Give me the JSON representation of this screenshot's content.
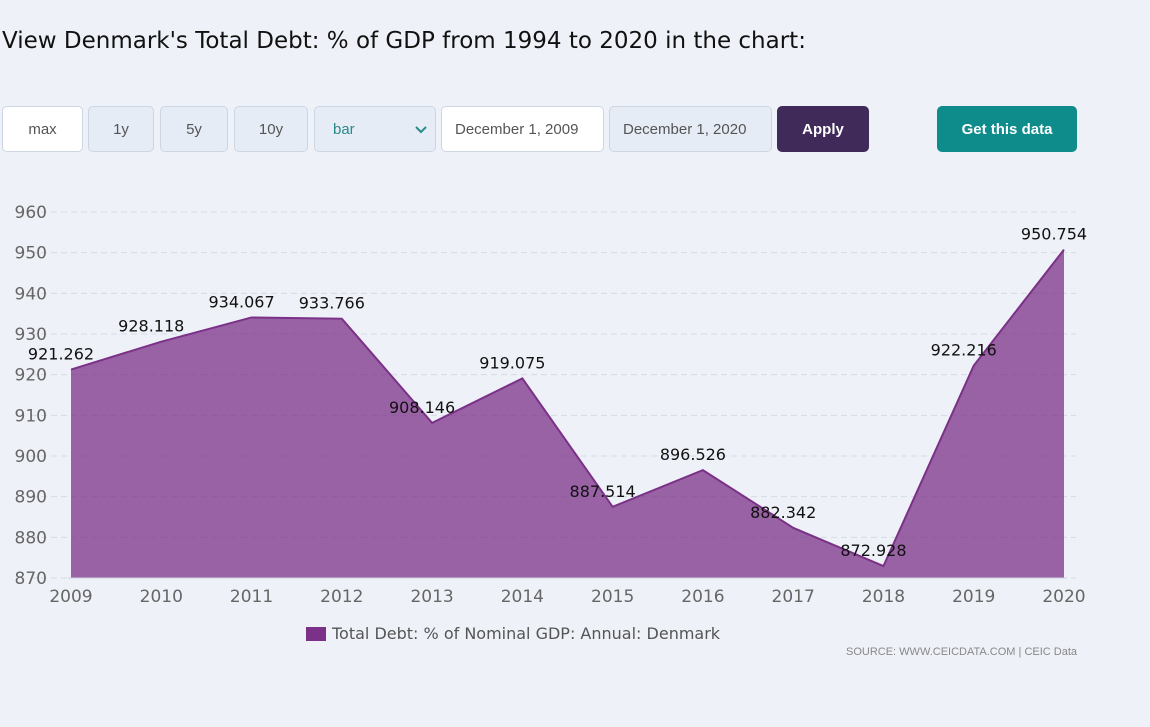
{
  "page": {
    "title": "View Denmark's Total Debt: % of GDP from 1994 to 2020 in the chart:"
  },
  "controls": {
    "periods": [
      "max",
      "1y",
      "5y",
      "10y"
    ],
    "chart_type": "bar",
    "date_from": "December 1, 2009",
    "date_to": "December 1, 2020",
    "apply_label": "Apply",
    "get_data_label": "Get this data"
  },
  "source": {
    "prefix": "SOURCE: WWW.CEICDATA.COM",
    "separator": "|",
    "name": "CEIC Data"
  },
  "colors": {
    "series": "#7b3188",
    "apply": "#3f2a5a",
    "get_data": "#0e8b8b"
  },
  "chart_data": {
    "type": "area",
    "x": [
      2009,
      2010,
      2011,
      2012,
      2013,
      2014,
      2015,
      2016,
      2017,
      2018,
      2019,
      2020
    ],
    "series": [
      {
        "name": "Total Debt: % of Nominal GDP: Annual: Denmark",
        "values": [
          921.262,
          928.118,
          934.067,
          933.766,
          908.146,
          919.075,
          887.514,
          896.526,
          882.342,
          872.928,
          922.216,
          950.754
        ],
        "labels": [
          "921.262",
          "928.118",
          "934.067",
          "933.766",
          "908.146",
          "919.075",
          "887.514",
          "896.526",
          "882.342",
          "872.928",
          "922.216",
          "950.754"
        ]
      }
    ],
    "ylim": [
      870,
      960
    ],
    "yticks": [
      870,
      880,
      890,
      900,
      910,
      920,
      930,
      940,
      950,
      960
    ],
    "grid": true,
    "legend": "bottom-center"
  }
}
